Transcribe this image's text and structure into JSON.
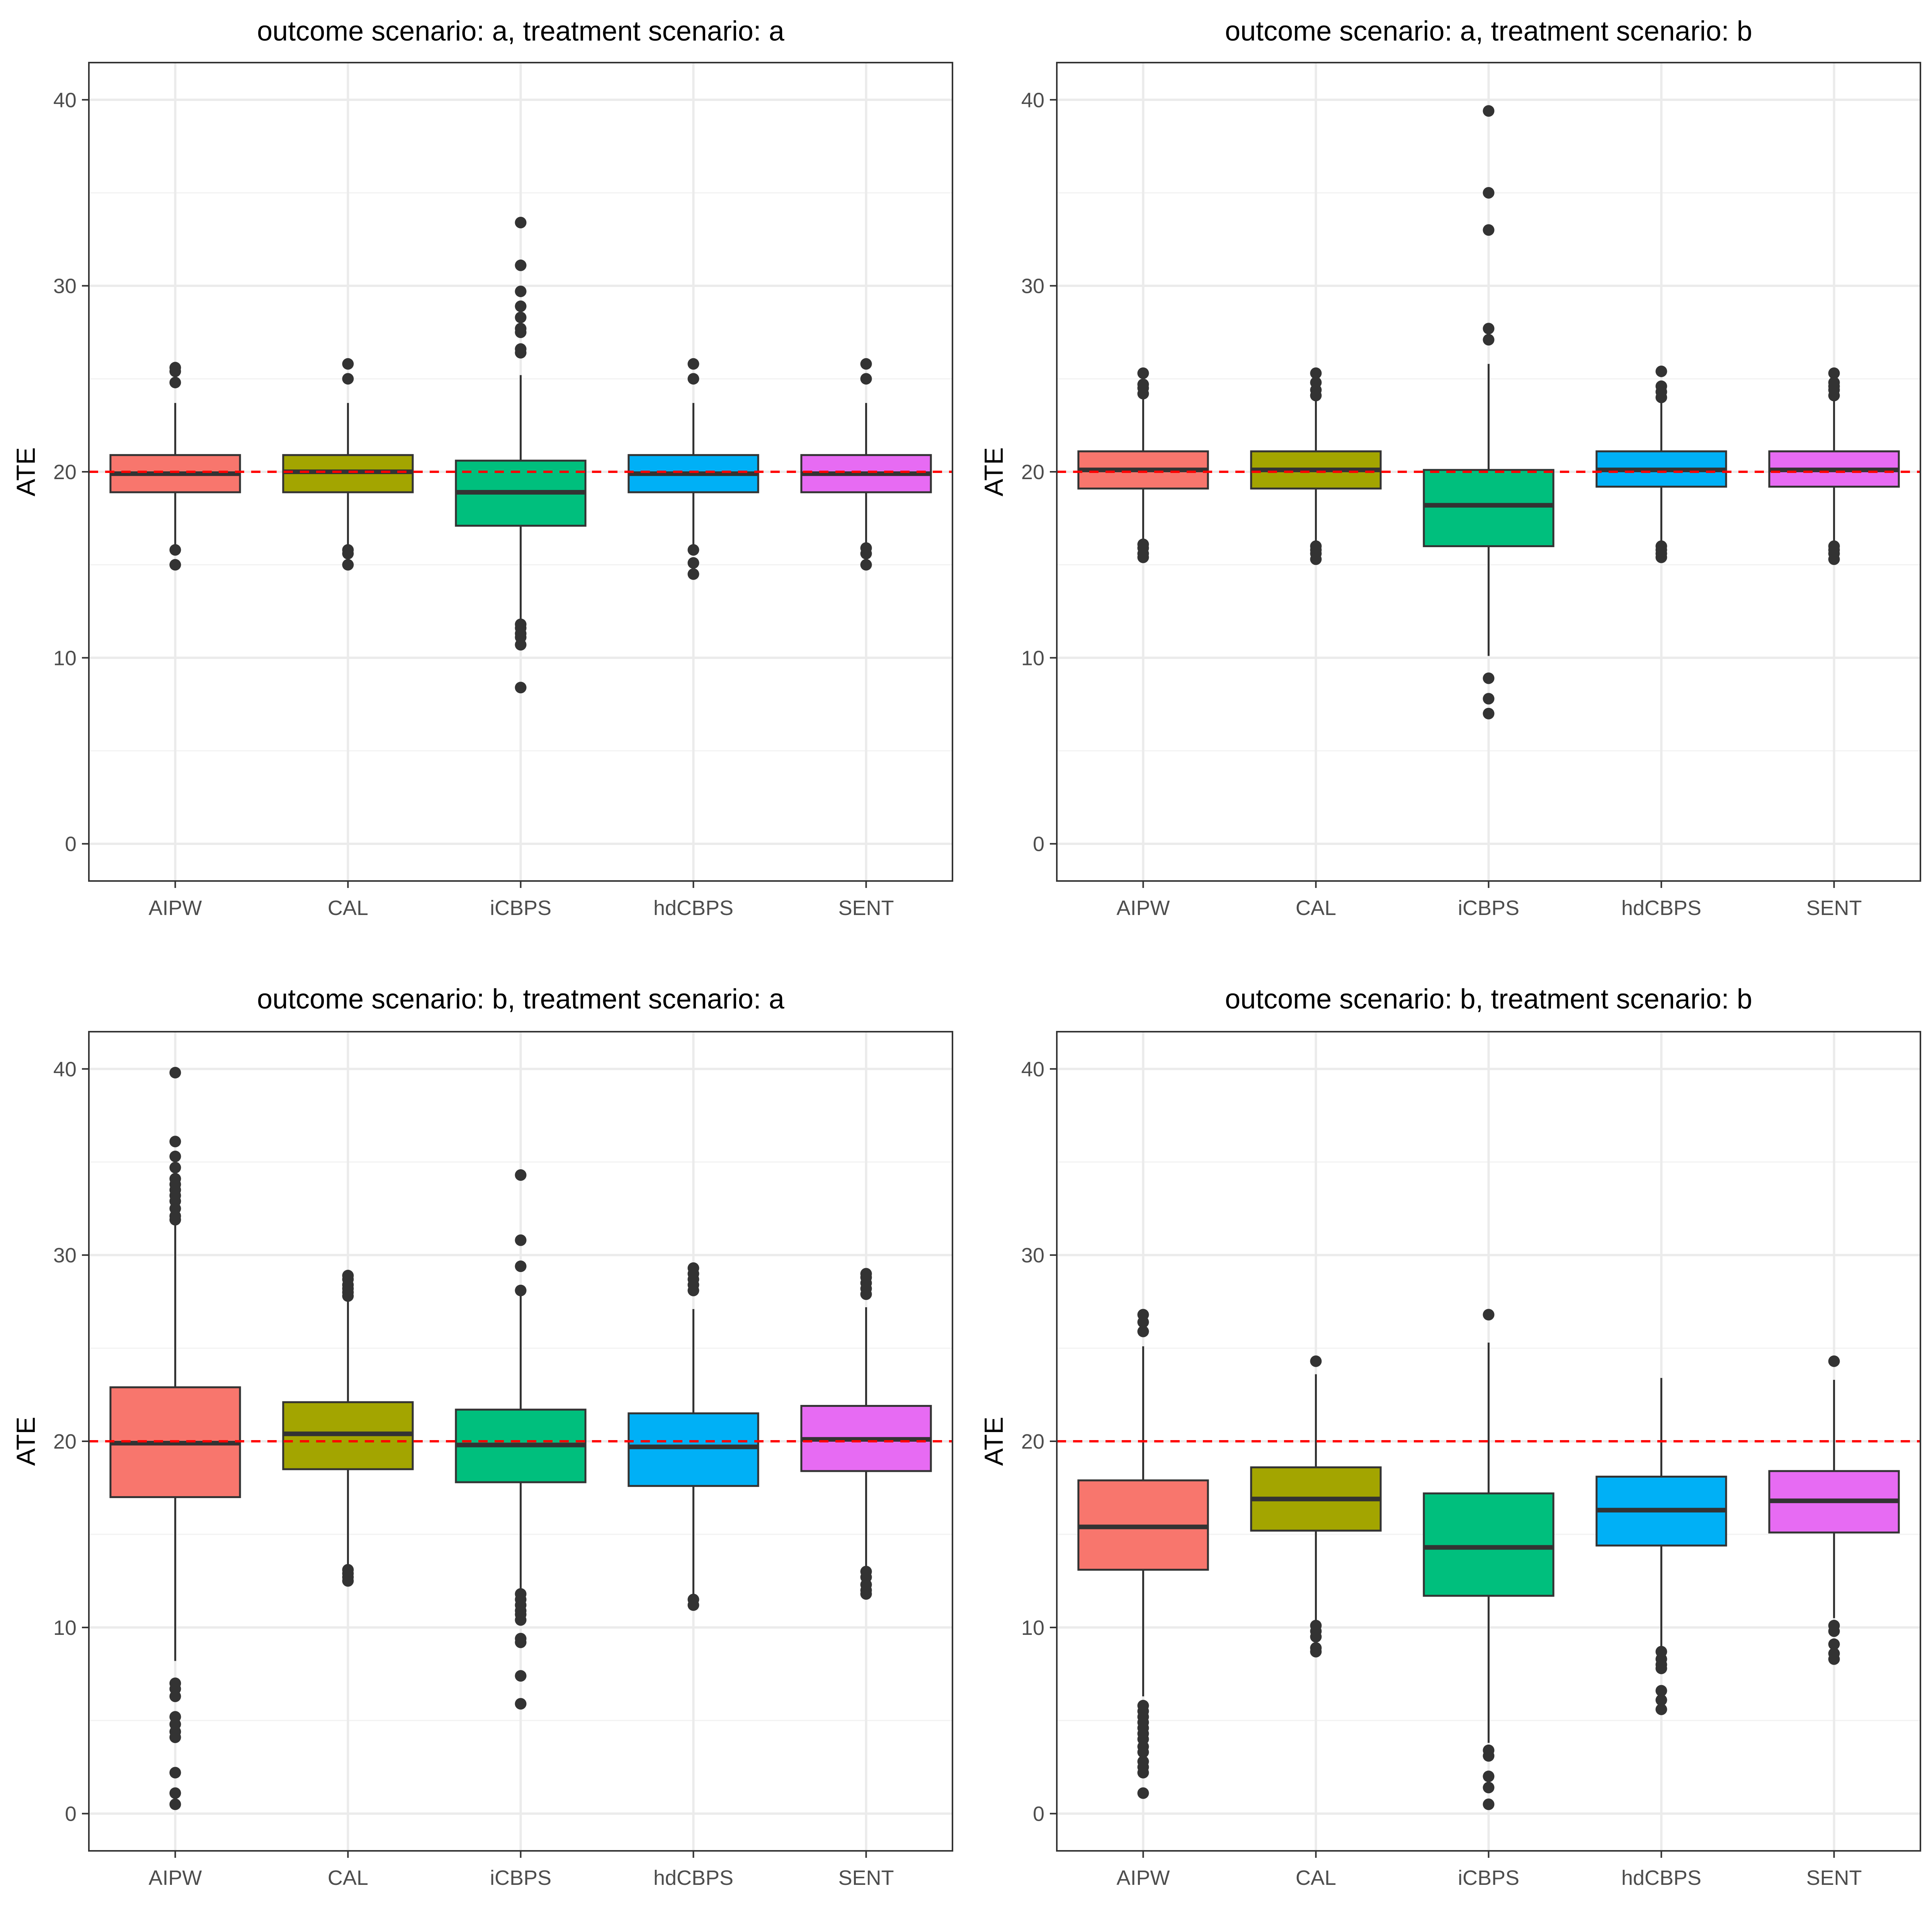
{
  "chart_data": [
    {
      "type": "box",
      "title": "outcome scenario: a, treatment scenario: a",
      "xlabel": "",
      "ylabel": "ATE",
      "ylim": [
        -2,
        42
      ],
      "yticks": [
        0,
        10,
        20,
        30,
        40
      ],
      "reference_line": {
        "y": 20,
        "color": "#ff0000",
        "style": "dashed"
      },
      "grid": true,
      "categories": [
        "AIPW",
        "CAL",
        "iCBPS",
        "hdCBPS",
        "SENT"
      ],
      "colors": [
        "#f8766d",
        "#a3a500",
        "#00bf7d",
        "#00b0f6",
        "#e76bf3"
      ],
      "boxes": [
        {
          "q1": 18.9,
          "median": 19.9,
          "q3": 20.9,
          "whisker_low": 16.0,
          "whisker_high": 23.7,
          "outliers": [
            25.6,
            25.4,
            24.8,
            15.8,
            15.0
          ]
        },
        {
          "q1": 18.9,
          "median": 20.0,
          "q3": 20.9,
          "whisker_low": 16.0,
          "whisker_high": 23.7,
          "outliers": [
            25.8,
            25.0,
            15.8,
            15.6,
            15.0
          ]
        },
        {
          "q1": 17.1,
          "median": 18.9,
          "q3": 20.6,
          "whisker_low": 11.9,
          "whisker_high": 25.2,
          "outliers": [
            33.4,
            31.1,
            29.7,
            28.9,
            28.3,
            27.7,
            27.5,
            26.6,
            26.4,
            11.8,
            11.6,
            11.3,
            11.1,
            10.7,
            8.4
          ]
        },
        {
          "q1": 18.9,
          "median": 19.9,
          "q3": 20.9,
          "whisker_low": 16.0,
          "whisker_high": 23.7,
          "outliers": [
            25.8,
            25.0,
            15.8,
            15.1,
            14.5
          ]
        },
        {
          "q1": 18.9,
          "median": 19.9,
          "q3": 20.9,
          "whisker_low": 16.0,
          "whisker_high": 23.7,
          "outliers": [
            25.8,
            25.0,
            15.9,
            15.6,
            15.0
          ]
        }
      ]
    },
    {
      "type": "box",
      "title": "outcome scenario: a, treatment scenario: b",
      "xlabel": "",
      "ylabel": "ATE",
      "ylim": [
        -2,
        42
      ],
      "yticks": [
        0,
        10,
        20,
        30,
        40
      ],
      "reference_line": {
        "y": 20,
        "color": "#ff0000",
        "style": "dashed"
      },
      "grid": true,
      "categories": [
        "AIPW",
        "CAL",
        "iCBPS",
        "hdCBPS",
        "SENT"
      ],
      "colors": [
        "#f8766d",
        "#a3a500",
        "#00bf7d",
        "#00b0f6",
        "#e76bf3"
      ],
      "boxes": [
        {
          "q1": 19.1,
          "median": 20.1,
          "q3": 21.1,
          "whisker_low": 16.3,
          "whisker_high": 24.0,
          "outliers": [
            25.3,
            24.7,
            24.5,
            24.2,
            16.1,
            15.9,
            15.6,
            15.4
          ]
        },
        {
          "q1": 19.1,
          "median": 20.1,
          "q3": 21.1,
          "whisker_low": 16.3,
          "whisker_high": 24.0,
          "outliers": [
            25.3,
            24.8,
            24.4,
            24.1,
            16.0,
            15.8,
            15.6,
            15.3
          ]
        },
        {
          "q1": 16.0,
          "median": 18.2,
          "q3": 20.1,
          "whisker_low": 10.1,
          "whisker_high": 25.8,
          "outliers": [
            39.4,
            35.0,
            33.0,
            27.7,
            27.1,
            8.9,
            7.8,
            7.0
          ]
        },
        {
          "q1": 19.2,
          "median": 20.1,
          "q3": 21.1,
          "whisker_low": 16.3,
          "whisker_high": 24.0,
          "outliers": [
            25.4,
            24.6,
            24.3,
            24.0,
            16.0,
            15.8,
            15.6,
            15.4
          ]
        },
        {
          "q1": 19.2,
          "median": 20.1,
          "q3": 21.1,
          "whisker_low": 16.3,
          "whisker_high": 24.0,
          "outliers": [
            25.3,
            24.8,
            24.6,
            24.4,
            24.1,
            16.0,
            15.8,
            15.6,
            15.3
          ]
        }
      ]
    },
    {
      "type": "box",
      "title": "outcome scenario: b, treatment scenario: a",
      "xlabel": "",
      "ylabel": "ATE",
      "ylim": [
        -2,
        42
      ],
      "yticks": [
        0,
        10,
        20,
        30,
        40
      ],
      "reference_line": {
        "y": 20,
        "color": "#ff0000",
        "style": "dashed"
      },
      "grid": true,
      "categories": [
        "AIPW",
        "CAL",
        "iCBPS",
        "hdCBPS",
        "SENT"
      ],
      "colors": [
        "#f8766d",
        "#a3a500",
        "#00bf7d",
        "#00b0f6",
        "#e76bf3"
      ],
      "boxes": [
        {
          "q1": 17.0,
          "median": 19.9,
          "q3": 22.9,
          "whisker_low": 8.2,
          "whisker_high": 31.7,
          "outliers": [
            39.8,
            36.1,
            35.3,
            34.7,
            34.1,
            33.8,
            33.5,
            33.2,
            32.9,
            32.5,
            32.1,
            31.9,
            7.0,
            6.7,
            6.3,
            5.2,
            4.8,
            4.4,
            4.1,
            2.2,
            1.1,
            0.5
          ]
        },
        {
          "q1": 18.5,
          "median": 20.4,
          "q3": 22.1,
          "whisker_low": 13.3,
          "whisker_high": 27.5,
          "outliers": [
            28.9,
            28.7,
            28.4,
            28.2,
            28.0,
            27.8,
            13.1,
            12.9,
            12.7,
            12.5
          ]
        },
        {
          "q1": 17.8,
          "median": 19.8,
          "q3": 21.7,
          "whisker_low": 12.0,
          "whisker_high": 27.8,
          "outliers": [
            34.3,
            30.8,
            29.4,
            28.1,
            11.8,
            11.5,
            11.2,
            10.9,
            10.7,
            10.4,
            9.4,
            9.2,
            7.4,
            5.9
          ]
        },
        {
          "q1": 17.6,
          "median": 19.7,
          "q3": 21.5,
          "whisker_low": 11.7,
          "whisker_high": 27.1,
          "outliers": [
            29.3,
            29.0,
            28.7,
            28.4,
            28.1,
            11.5,
            11.2
          ]
        },
        {
          "q1": 18.4,
          "median": 20.1,
          "q3": 21.9,
          "whisker_low": 13.2,
          "whisker_high": 27.2,
          "outliers": [
            29.0,
            28.8,
            28.5,
            28.2,
            27.9,
            13.0,
            12.7,
            12.3,
            12.0,
            11.8
          ]
        }
      ]
    },
    {
      "type": "box",
      "title": "outcome scenario: b, treatment scenario: b",
      "xlabel": "",
      "ylabel": "ATE",
      "ylim": [
        -2,
        42
      ],
      "yticks": [
        0,
        10,
        20,
        30,
        40
      ],
      "reference_line": {
        "y": 20,
        "color": "#ff0000",
        "style": "dashed"
      },
      "grid": true,
      "categories": [
        "AIPW",
        "CAL",
        "iCBPS",
        "hdCBPS",
        "SENT"
      ],
      "colors": [
        "#f8766d",
        "#a3a500",
        "#00bf7d",
        "#00b0f6",
        "#e76bf3"
      ],
      "boxes": [
        {
          "q1": 13.1,
          "median": 15.4,
          "q3": 17.9,
          "whisker_low": 6.3,
          "whisker_high": 25.1,
          "outliers": [
            26.8,
            26.4,
            25.9,
            5.8,
            5.5,
            5.2,
            4.9,
            4.6,
            4.3,
            4.0,
            3.6,
            3.3,
            2.8,
            2.5,
            2.2,
            1.1
          ]
        },
        {
          "q1": 15.2,
          "median": 16.9,
          "q3": 18.6,
          "whisker_low": 10.3,
          "whisker_high": 23.6,
          "outliers": [
            24.3,
            10.1,
            9.8,
            9.5,
            8.9,
            8.7
          ]
        },
        {
          "q1": 11.7,
          "median": 14.3,
          "q3": 17.2,
          "whisker_low": 3.8,
          "whisker_high": 25.3,
          "outliers": [
            26.8,
            3.4,
            3.1,
            2.0,
            1.4,
            0.5
          ]
        },
        {
          "q1": 14.4,
          "median": 16.3,
          "q3": 18.1,
          "whisker_low": 9.0,
          "whisker_high": 23.4,
          "outliers": [
            8.7,
            8.3,
            8.0,
            7.8,
            6.6,
            6.1,
            5.6
          ]
        },
        {
          "q1": 15.1,
          "median": 16.8,
          "q3": 18.4,
          "whisker_low": 10.5,
          "whisker_high": 23.3,
          "outliers": [
            24.3,
            10.1,
            9.8,
            9.1,
            8.6,
            8.3
          ]
        }
      ]
    }
  ]
}
